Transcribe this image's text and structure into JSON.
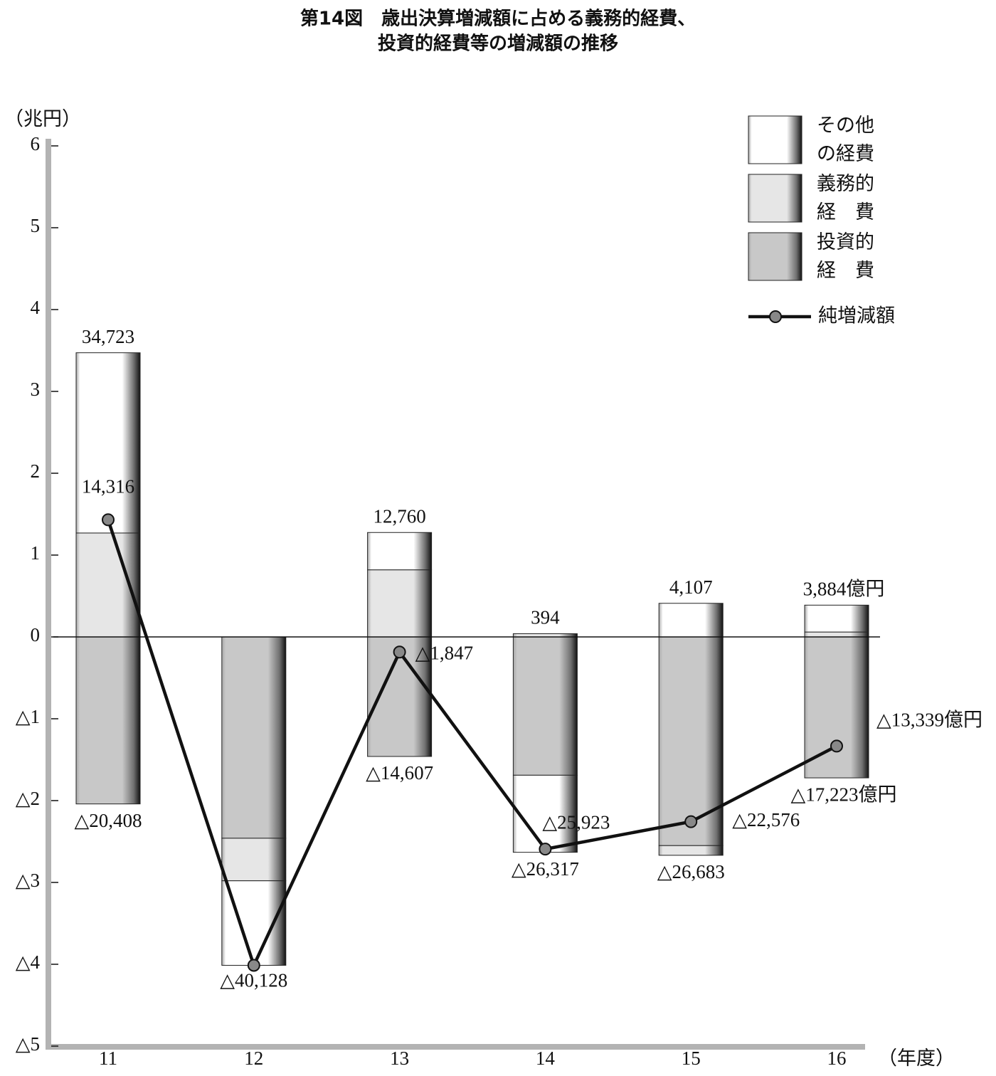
{
  "chart_data": {
    "type": "stacked-bar-line",
    "title": [
      "第14図　歳出決算増減額に占める義務的経費、",
      "投資的経費等の増減額の推移"
    ],
    "y_label": "（兆円）",
    "x_label": "（年度）",
    "categories": [
      "11",
      "12",
      "13",
      "14",
      "15",
      "16"
    ],
    "ylim": [
      -5,
      6
    ],
    "yticks": [
      6,
      5,
      4,
      3,
      2,
      1,
      0,
      {
        "value": -1,
        "label": "△1"
      },
      {
        "value": -2,
        "label": "△2"
      },
      {
        "value": -3,
        "label": "△3"
      },
      {
        "value": -4,
        "label": "△4"
      },
      {
        "value": -5,
        "label": "△5"
      }
    ],
    "series": [
      {
        "name": "投資的経　費",
        "color": "#c8c8c8",
        "values": [
          -2.0408,
          -2.46,
          -1.4607,
          -1.69,
          -2.55,
          -1.7223
        ]
      },
      {
        "name": "義務的経　費",
        "color": "#e6e6e6",
        "values": [
          1.27,
          -0.52,
          0.82,
          0.0394,
          -0.1183,
          0.06
        ]
      },
      {
        "name": "その他の経費",
        "color": "#ffffff",
        "values": [
          2.2023,
          -1.0328,
          0.456,
          -0.9417,
          0.4107,
          0.3284
        ]
      }
    ],
    "net": {
      "name": "純増減額",
      "color": "#111111",
      "values": [
        1.4316,
        -4.0128,
        -0.1847,
        -2.5923,
        -2.2576,
        -1.3339
      ],
      "value_labels": [
        "14,316",
        "△40,128",
        "△1,847",
        "△25,923",
        "△22,576",
        "△13,339億円"
      ]
    },
    "positive_totals": {
      "values": [
        3.4723,
        null,
        1.276,
        0.0394,
        0.4107,
        0.3884
      ],
      "value_labels": [
        "34,723",
        null,
        "12,760",
        "394",
        "4,107",
        "3,884億円"
      ]
    },
    "negative_totals": {
      "values": [
        -2.0408,
        null,
        -1.4607,
        -2.6317,
        -2.6683,
        -1.7223
      ],
      "value_labels": [
        "△20,408",
        null,
        "△14,607",
        "△26,317",
        "△26,683",
        "△17,223億円"
      ]
    }
  }
}
